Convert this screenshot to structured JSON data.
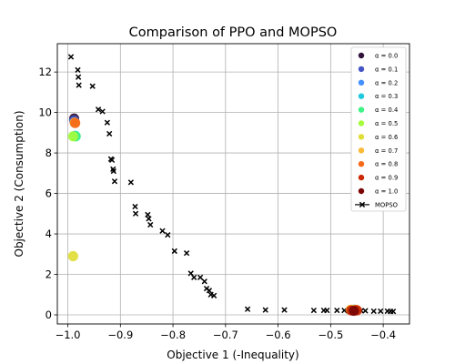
{
  "chart_data": {
    "type": "scatter",
    "title": "Comparison of PPO and MOPSO",
    "xlabel": "Objective 1 (-Inequality)",
    "ylabel": "Objective 2 (Consumption)",
    "xlim": [
      -1.02,
      -0.35
    ],
    "ylim": [
      -0.45,
      13.4
    ],
    "xticks": [
      -1.0,
      -0.9,
      -0.8,
      -0.7,
      -0.6,
      -0.5,
      -0.4
    ],
    "xtick_labels": [
      "−1.0",
      "−0.9",
      "−0.8",
      "−0.7",
      "−0.6",
      "−0.5",
      "−0.4"
    ],
    "yticks": [
      0,
      2,
      4,
      6,
      8,
      10,
      12
    ],
    "ytick_labels": [
      "0",
      "2",
      "4",
      "6",
      "8",
      "10",
      "12"
    ],
    "grid": true,
    "legend_position": "top-right",
    "series": [
      {
        "name": "α = 0.0",
        "color": "#30123b",
        "marker": "circle",
        "points": [
          [
            -0.988,
            9.7
          ],
          [
            -0.455,
            0.25
          ]
        ]
      },
      {
        "name": "α = 0.1",
        "color": "#4454c4",
        "marker": "circle",
        "points": [
          [
            -0.988,
            9.6
          ],
          [
            -0.455,
            0.25
          ]
        ]
      },
      {
        "name": "α = 0.2",
        "color": "#4490fe",
        "marker": "circle",
        "points": [
          [
            -0.987,
            9.5
          ],
          [
            -0.456,
            0.25
          ]
        ]
      },
      {
        "name": "α = 0.3",
        "color": "#1fc9dd",
        "marker": "circle",
        "points": [
          [
            -0.986,
            8.85
          ],
          [
            -0.457,
            0.25
          ]
        ]
      },
      {
        "name": "α = 0.4",
        "color": "#3ef286",
        "marker": "circle",
        "points": [
          [
            -0.985,
            8.82
          ],
          [
            -0.458,
            0.25
          ]
        ]
      },
      {
        "name": "α = 0.5",
        "color": "#a4fc3c",
        "marker": "circle",
        "points": [
          [
            -0.99,
            8.82
          ],
          [
            -0.459,
            0.25
          ]
        ]
      },
      {
        "name": "α = 0.6",
        "color": "#e1dd37",
        "marker": "circle",
        "points": [
          [
            -0.99,
            2.9
          ],
          [
            -0.46,
            0.25
          ]
        ]
      },
      {
        "name": "α = 0.7",
        "color": "#fbb938",
        "marker": "circle",
        "points": [
          [
            -0.987,
            9.5
          ],
          [
            -0.462,
            0.25
          ]
        ]
      },
      {
        "name": "α = 0.8",
        "color": "#f56918",
        "marker": "circle",
        "points": [
          [
            -0.986,
            9.48
          ],
          [
            -0.452,
            0.25
          ]
        ]
      },
      {
        "name": "α = 0.9",
        "color": "#cb2a04",
        "marker": "circle",
        "points": [
          [
            -0.461,
            0.22
          ],
          [
            -0.45,
            0.22
          ]
        ]
      },
      {
        "name": "α = 1.0",
        "color": "#7a0403",
        "marker": "circle",
        "points": [
          [
            -0.456,
            0.2
          ]
        ]
      },
      {
        "name": "MOPSO",
        "color": "#000000",
        "marker": "x",
        "points": [
          [
            -0.994,
            12.75
          ],
          [
            -0.981,
            12.1
          ],
          [
            -0.98,
            11.75
          ],
          [
            -0.979,
            11.35
          ],
          [
            -0.953,
            11.3
          ],
          [
            -0.942,
            10.15
          ],
          [
            -0.934,
            10.05
          ],
          [
            -0.925,
            9.5
          ],
          [
            -0.921,
            8.95
          ],
          [
            -0.918,
            7.7
          ],
          [
            -0.916,
            7.65
          ],
          [
            -0.914,
            7.2
          ],
          [
            -0.913,
            7.1
          ],
          [
            -0.911,
            6.6
          ],
          [
            -0.88,
            6.55
          ],
          [
            -0.872,
            5.35
          ],
          [
            -0.871,
            5.0
          ],
          [
            -0.848,
            4.95
          ],
          [
            -0.846,
            4.75
          ],
          [
            -0.843,
            4.45
          ],
          [
            -0.82,
            4.15
          ],
          [
            -0.81,
            3.95
          ],
          [
            -0.797,
            3.15
          ],
          [
            -0.774,
            3.05
          ],
          [
            -0.766,
            2.05
          ],
          [
            -0.76,
            1.85
          ],
          [
            -0.748,
            1.85
          ],
          [
            -0.74,
            1.65
          ],
          [
            -0.736,
            1.3
          ],
          [
            -0.731,
            1.2
          ],
          [
            -0.728,
            1.0
          ],
          [
            -0.722,
            0.95
          ],
          [
            -0.658,
            0.28
          ],
          [
            -0.624,
            0.24
          ],
          [
            -0.588,
            0.24
          ],
          [
            -0.532,
            0.22
          ],
          [
            -0.513,
            0.22
          ],
          [
            -0.507,
            0.22
          ],
          [
            -0.488,
            0.22
          ],
          [
            -0.474,
            0.22
          ],
          [
            -0.466,
            0.2
          ],
          [
            -0.442,
            0.2
          ],
          [
            -0.434,
            0.2
          ],
          [
            -0.418,
            0.18
          ],
          [
            -0.405,
            0.18
          ],
          [
            -0.392,
            0.18
          ],
          [
            -0.386,
            0.17
          ],
          [
            -0.381,
            0.17
          ]
        ]
      }
    ]
  }
}
